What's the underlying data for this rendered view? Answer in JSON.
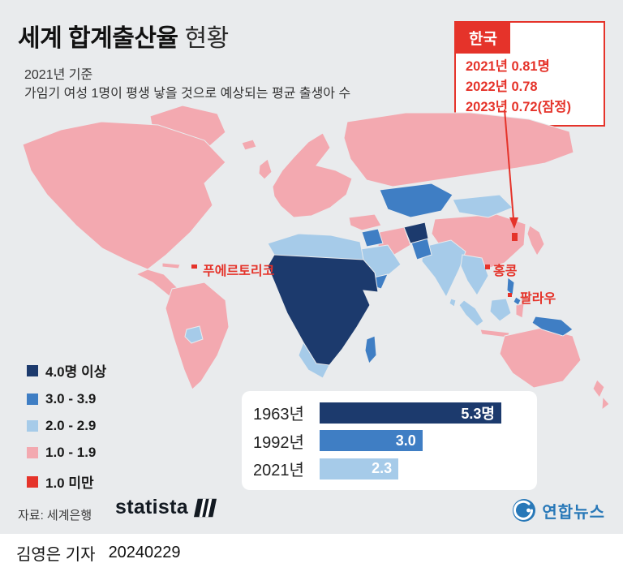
{
  "header": {
    "title_bold": "세계 합계출산율",
    "title_light": "현황",
    "subtitle1": "2021년 기준",
    "subtitle2": "가임기 여성 1명이 평생 낳을 것으로 예상되는 평균 출생아 수"
  },
  "callout": {
    "title": "한국",
    "lines": [
      "2021년 0.81명",
      "2022년 0.78",
      "2023년 0.72(잠정)"
    ]
  },
  "map_labels": [
    {
      "text": "푸에르토리코"
    },
    {
      "text": "홍콩"
    },
    {
      "text": "팔라우"
    }
  ],
  "legend": {
    "items": [
      {
        "label": "4.0명 이상",
        "color": "#1c3a6d"
      },
      {
        "label": "3.0 - 3.9",
        "color": "#3f7ec4"
      },
      {
        "label": "2.0 - 2.9",
        "color": "#a6cbe9"
      },
      {
        "label": "1.0 - 1.9",
        "color": "#f3a9b0"
      },
      {
        "label": "1.0 미만",
        "color": "#e5332a"
      }
    ]
  },
  "chart_data": [
    {
      "type": "bar",
      "orientation": "horizontal",
      "categories": [
        "1963년",
        "1992년",
        "2021년"
      ],
      "values": [
        5.3,
        3.0,
        2.3
      ],
      "value_labels": [
        "5.3명",
        "3.0",
        "2.3"
      ],
      "colors": [
        "#1c3a6d",
        "#3f7ec4",
        "#a6cbe9"
      ],
      "xlim": [
        0,
        5.3
      ],
      "legend_position": "none",
      "grid": false
    },
    {
      "type": "heatmap",
      "note": "세계 합계출산율 단계구분도 (2021년 기준)",
      "bins": [
        "4.0명 이상",
        "3.0 - 3.9",
        "2.0 - 2.9",
        "1.0 - 1.9",
        "1.0 미만"
      ],
      "bin_colors": [
        "#1c3a6d",
        "#3f7ec4",
        "#a6cbe9",
        "#f3a9b0",
        "#e5332a"
      ],
      "highlighted_under_1": [
        "한국",
        "푸에르토리코",
        "홍콩",
        "팔라우"
      ],
      "korea": {
        "2021": "0.81명",
        "2022": "0.78",
        "2023": "0.72(잠정)"
      }
    }
  ],
  "source": {
    "label": "자료: 세계은행",
    "statista": "statista",
    "agency": "연합뉴스"
  },
  "footer": {
    "reporter": "김영은 기자",
    "date": "20240229"
  },
  "palette": {
    "navy": "#1c3a6d",
    "blue": "#3f7ec4",
    "lightblue": "#a6cbe9",
    "pink": "#f3a9b0",
    "red": "#e5332a",
    "bg": "#e9ebed",
    "yonhap": "#2878b8"
  }
}
